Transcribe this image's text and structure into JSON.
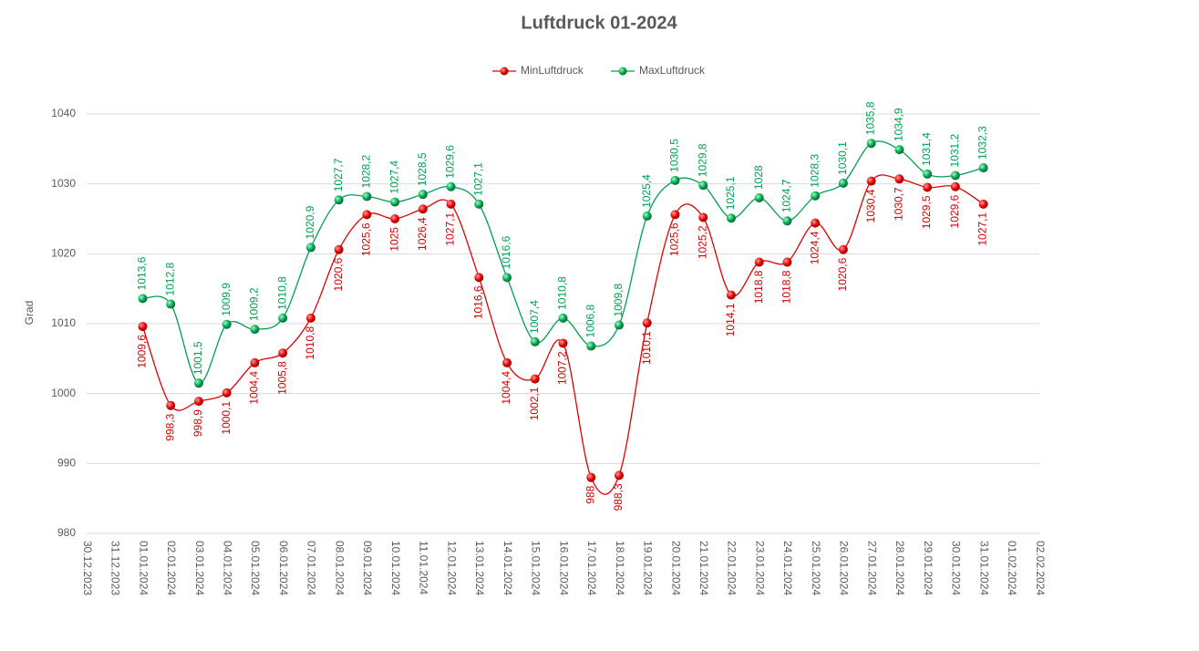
{
  "chart_data": {
    "type": "line",
    "title": "Luftdruck 01-2024",
    "y_label": "Grad",
    "categories": [
      "30.12.2023",
      "31.12.2023",
      "01.01.2024",
      "02.01.2024",
      "03.01.2024",
      "04.01.2024",
      "05.01.2024",
      "06.01.2024",
      "07.01.2024",
      "08.01.2024",
      "09.01.2024",
      "10.01.2024",
      "11.01.2024",
      "12.01.2024",
      "13.01.2024",
      "14.01.2024",
      "15.01.2024",
      "16.01.2024",
      "17.01.2024",
      "18.01.2024",
      "19.01.2024",
      "20.01.2024",
      "21.01.2024",
      "22.01.2024",
      "23.01.2024",
      "24.01.2024",
      "25.01.2024",
      "26.01.2024",
      "27.01.2024",
      "28.01.2024",
      "29.01.2024",
      "30.01.2024",
      "31.01.2024",
      "01.02.2024",
      "02.02.2024"
    ],
    "series": [
      {
        "name": "MinLuftdruck",
        "color": "#e00000",
        "label_color": "#d00000",
        "label_position": "below",
        "values": [
          null,
          null,
          1009.6,
          998.3,
          998.9,
          1000.1,
          1004.4,
          1005.8,
          1010.8,
          1020.6,
          1025.6,
          1025,
          1026.4,
          1027.1,
          1016.6,
          1004.4,
          1002.1,
          1007.2,
          988,
          988.3,
          1010.1,
          1025.6,
          1025.2,
          1014.1,
          1018.8,
          1018.8,
          1024.4,
          1020.6,
          1030.4,
          1030.7,
          1029.5,
          1029.6,
          1027.1,
          null,
          null
        ],
        "value_labels": [
          null,
          null,
          "1009,6",
          "998,3",
          "998,9",
          "1000,1",
          "1004,4",
          "1005,8",
          "1010,8",
          "1020,6",
          "1025,6",
          "1025",
          "1026,4",
          "1027,1",
          "1016,6",
          "1004,4",
          "1002,1",
          "1007,2",
          "988",
          "988,3",
          "1010,1",
          "1025,6",
          "1025,2",
          "1014,1",
          "1018,8",
          "1018,8",
          "1024,4",
          "1020,6",
          "1030,4",
          "1030,7",
          "1029,5",
          "1029,6",
          "1027,1",
          null,
          null
        ]
      },
      {
        "name": "MaxLuftdruck",
        "color": "#00a050",
        "label_color": "#00a050",
        "label_position": "above",
        "values": [
          null,
          null,
          1013.6,
          1012.8,
          1001.5,
          1009.9,
          1009.2,
          1010.8,
          1020.9,
          1027.7,
          1028.2,
          1027.4,
          1028.5,
          1029.6,
          1027.1,
          1016.6,
          1007.4,
          1010.8,
          1006.8,
          1009.8,
          1025.4,
          1030.5,
          1029.8,
          1025.1,
          1028,
          1024.7,
          1028.3,
          1030.1,
          1035.8,
          1034.9,
          1031.4,
          1031.2,
          1032.3,
          null,
          null
        ],
        "value_labels": [
          null,
          null,
          "1013,6",
          "1012,8",
          "1001,5",
          "1009,9",
          "1009,2",
          "1010,8",
          "1020,9",
          "1027,7",
          "1028,2",
          "1027,4",
          "1028,5",
          "1029,6",
          "1027,1",
          "1016,6",
          "1007,4",
          "1010,8",
          "1006,8",
          "1009,8",
          "1025,4",
          "1030,5",
          "1029,8",
          "1025,1",
          "1028",
          "1024,7",
          "1028,3",
          "1030,1",
          "1035,8",
          "1034,9",
          "1031,4",
          "1031,2",
          "1032,3",
          null,
          null
        ]
      }
    ],
    "ylim": [
      980,
      1040
    ],
    "yticks": [
      980,
      990,
      1000,
      1010,
      1020,
      1030,
      1040
    ],
    "grid": true,
    "smooth": true,
    "legend": "top"
  }
}
